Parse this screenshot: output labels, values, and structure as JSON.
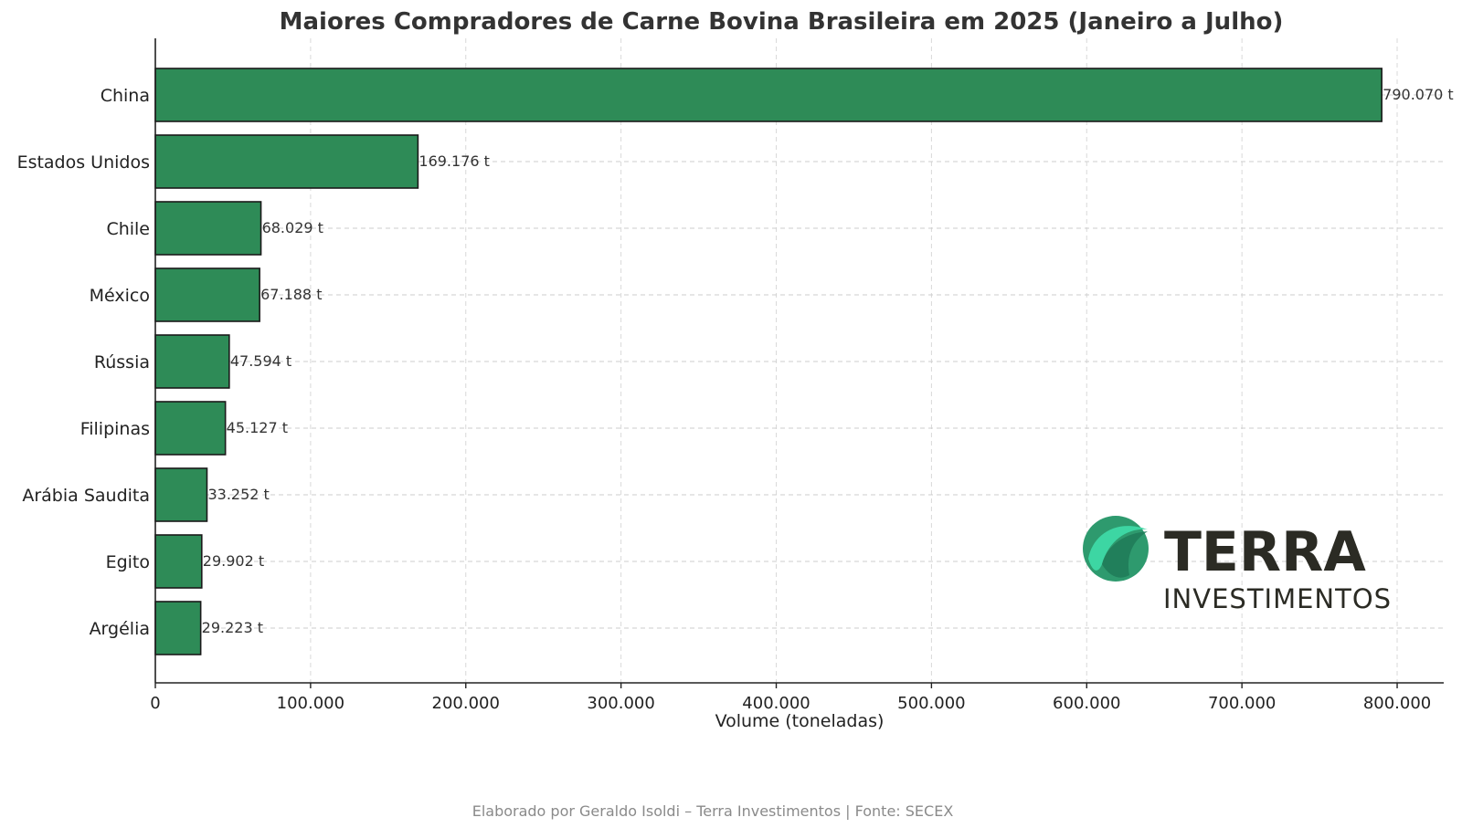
{
  "chart_data": {
    "type": "bar",
    "orientation": "horizontal",
    "title": "Maiores Compradores de Carne Bovina Brasileira em 2025 (Janeiro a Julho)",
    "xlabel": "Volume (toneladas)",
    "ylabel": "",
    "categories": [
      "China",
      "Estados Unidos",
      "Chile",
      "México",
      "Rússia",
      "Filipinas",
      "Arábia Saudita",
      "Egito",
      "Argélia"
    ],
    "values": [
      790070,
      169176,
      68029,
      67188,
      47594,
      45127,
      33252,
      29902,
      29223
    ],
    "data_labels": [
      "790.070 t",
      "169.176 t",
      "68.029 t",
      "67.188 t",
      "47.594 t",
      "45.127 t",
      "33.252 t",
      "29.902 t",
      "29.223 t"
    ],
    "xlim": [
      0,
      830000
    ],
    "x_ticks": [
      0,
      100000,
      200000,
      300000,
      400000,
      500000,
      600000,
      700000,
      800000
    ],
    "x_tick_labels": [
      "0",
      "100.000",
      "200.000",
      "300.000",
      "400.000",
      "500.000",
      "600.000",
      "700.000",
      "800.000"
    ],
    "grid": true,
    "bar_color": "#2e8b57",
    "bar_edge_color": "#1a1a1a"
  },
  "logo": {
    "name": "TERRA",
    "subtitle": "INVESTIMENTOS",
    "colors": [
      "#2e9a6e",
      "#3dd6a3",
      "#1f7a58"
    ]
  },
  "footer": {
    "text": "Elaborado por Geraldo Isoldi – Terra Investimentos | Fonte: SECEX"
  }
}
